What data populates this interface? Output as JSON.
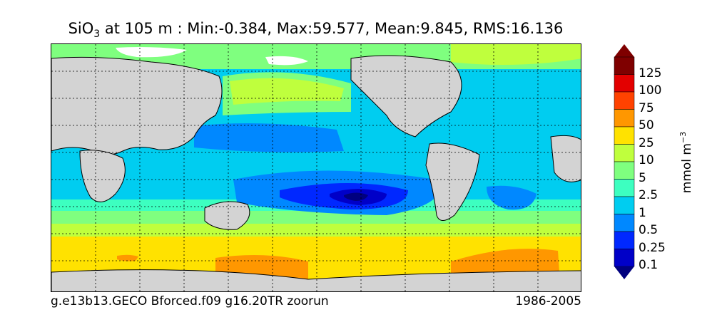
{
  "title": {
    "species_main": "SiO",
    "species_sub": "3",
    "depth_text": " at 105 m : ",
    "min_text": "Min:-0.384",
    "max_text": "Max:59.577",
    "mean_text": "Mean:9.845",
    "rms_text": "RMS:16.136"
  },
  "footer": {
    "run_name": "g.e13b13.GECO Bforced.f09 g16.20TR zoorun",
    "period": "1986-2005"
  },
  "colorbar": {
    "unit_main": "mmol m",
    "unit_exp": "−3",
    "levels": [
      "0.1",
      "0.25",
      "0.5",
      "1",
      "2.5",
      "5",
      "10",
      "25",
      "50",
      "75",
      "100",
      "125"
    ],
    "colors": [
      "#00007f",
      "#0000c8",
      "#0028ff",
      "#0088ff",
      "#00cdf0",
      "#3dffc0",
      "#7fff7f",
      "#bfff3d",
      "#ffe200",
      "#ff9700",
      "#ff4200",
      "#e30000",
      "#7f0000"
    ]
  },
  "map": {
    "land_color": "#d3d3d3",
    "ice_color": "#ffffff",
    "grid": true
  }
}
